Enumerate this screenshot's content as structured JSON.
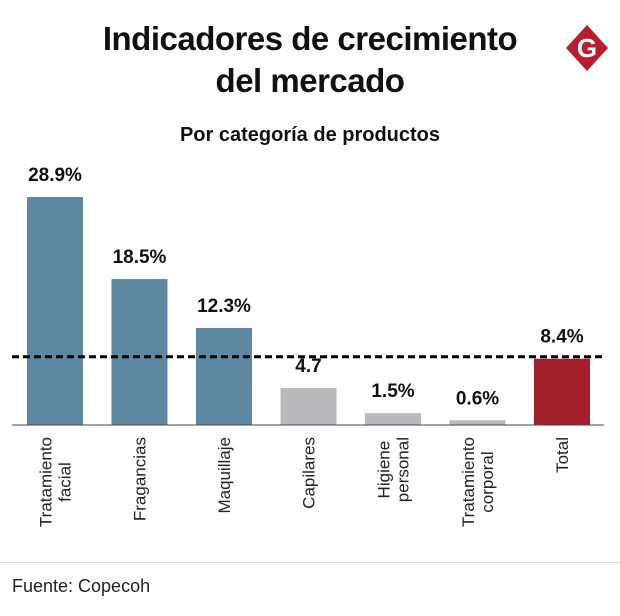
{
  "header": {
    "title_line1": "Indicadores de crecimiento",
    "title_line2": "del mercado",
    "logo_letter": "G",
    "logo_icon": "g-hexagon-logo-icon"
  },
  "colors": {
    "blue": "#5e88a1",
    "gray": "#b8b8bd",
    "red": "#a01f2b",
    "logo": "#b81e2e",
    "text": "#111111"
  },
  "chart_data": {
    "type": "bar",
    "title": "Indicadores de crecimiento del mercado",
    "subtitle": "Por categoría de productos",
    "categories": [
      [
        "Tratamiento",
        "facial"
      ],
      [
        "Fragancias"
      ],
      [
        "Maquillaje"
      ],
      [
        "Capilares"
      ],
      [
        "Higiene",
        "personal"
      ],
      [
        "Tratamiento",
        "corporal"
      ],
      [
        "Total"
      ]
    ],
    "values": [
      28.9,
      18.5,
      12.3,
      4.7,
      1.5,
      0.6,
      8.4
    ],
    "labels": [
      "28.9%",
      "18.5%",
      "12.3%",
      "4.7",
      "1.5%",
      "0.6%",
      "8.4%"
    ],
    "bar_colors": [
      "blue",
      "blue",
      "blue",
      "gray",
      "gray",
      "gray",
      "red"
    ],
    "reference_line": 8.4,
    "ylim": [
      0,
      28.9
    ],
    "xlabel": "",
    "ylabel": "",
    "grid": false,
    "legend": "none"
  },
  "footer": {
    "source": "Fuente: Copecoh"
  }
}
